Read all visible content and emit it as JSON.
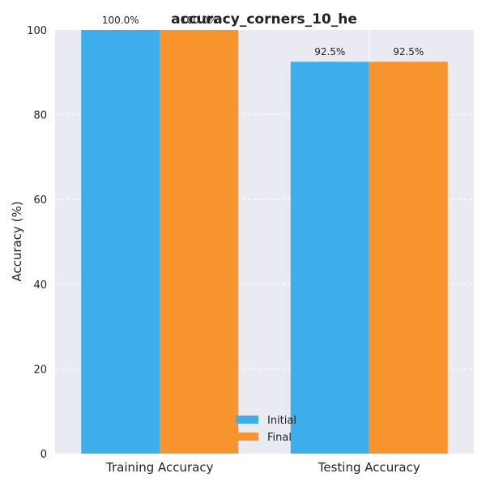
{
  "chart_data": {
    "type": "bar",
    "title": "accuracy_corners_10_he",
    "ylabel": "Accuracy (%)",
    "xlabel": "",
    "categories": [
      "Training Accuracy",
      "Testing Accuracy"
    ],
    "ylim": [
      0,
      100
    ],
    "yticks": [
      0,
      20,
      40,
      60,
      80,
      100
    ],
    "grid": true,
    "legend_position": "lower center",
    "series": [
      {
        "name": "Initial",
        "values": [
          100.0,
          92.5
        ],
        "labels": [
          "100.0%",
          "92.5%"
        ],
        "color": "#3daeeb"
      },
      {
        "name": "Final",
        "values": [
          100.0,
          92.5
        ],
        "labels": [
          "100.0%",
          "92.5%"
        ],
        "color": "#f7942d"
      }
    ],
    "background_color": "#eaeaf2"
  }
}
